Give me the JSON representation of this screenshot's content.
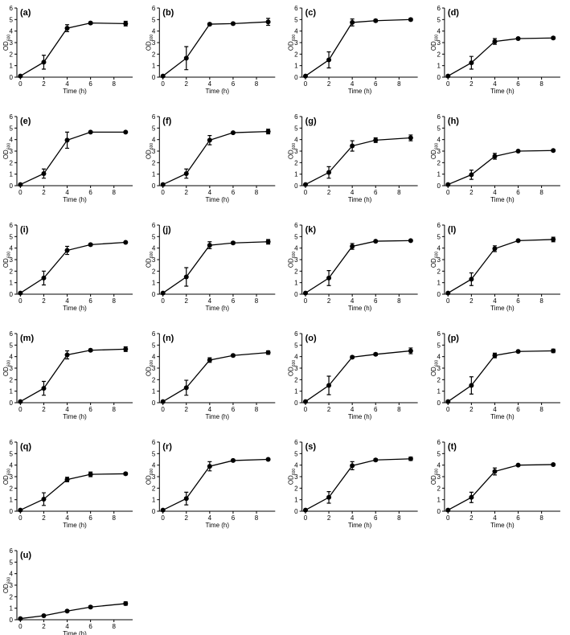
{
  "chart_data": [
    {
      "type": "line",
      "title": "(a)",
      "xlabel": "Time (h)",
      "ylabel": "OD",
      "ylabel_subscript": "600",
      "x": [
        0,
        2,
        4,
        6,
        9
      ],
      "xlim": [
        -0.3,
        9.6
      ],
      "ylim": [
        0,
        6
      ],
      "xticks": [
        0,
        2,
        4,
        6,
        8
      ],
      "yticks": [
        0,
        1,
        2,
        3,
        4,
        5,
        6
      ],
      "series": [
        {
          "color": "#000000",
          "values": [
            0.1,
            1.3,
            4.25,
            4.7,
            4.65
          ],
          "errors": [
            0.05,
            0.6,
            0.3,
            0.1,
            0.2
          ]
        }
      ]
    },
    {
      "type": "line",
      "title": "(b)",
      "xlabel": "Time (h)",
      "ylabel": "OD",
      "ylabel_subscript": "600",
      "x": [
        0,
        2,
        4,
        6,
        9
      ],
      "xlim": [
        -0.3,
        9.6
      ],
      "ylim": [
        0,
        6
      ],
      "xticks": [
        0,
        2,
        4,
        6,
        8
      ],
      "yticks": [
        0,
        1,
        2,
        3,
        4,
        5,
        6
      ],
      "series": [
        {
          "color": "#000000",
          "values": [
            0.1,
            1.65,
            4.6,
            4.65,
            4.8
          ],
          "errors": [
            0.05,
            1.0,
            0.1,
            0.1,
            0.3
          ]
        }
      ]
    },
    {
      "type": "line",
      "title": "(c)",
      "xlabel": "Time (h)",
      "ylabel": "OD",
      "ylabel_subscript": "600",
      "x": [
        0,
        2,
        4,
        6,
        9
      ],
      "xlim": [
        -0.3,
        9.6
      ],
      "ylim": [
        0,
        6
      ],
      "xticks": [
        0,
        2,
        4,
        6,
        8
      ],
      "yticks": [
        0,
        1,
        2,
        3,
        4,
        5,
        6
      ],
      "series": [
        {
          "color": "#000000",
          "values": [
            0.1,
            1.5,
            4.75,
            4.9,
            5.0
          ],
          "errors": [
            0.05,
            0.7,
            0.3,
            0.1,
            0.1
          ]
        }
      ]
    },
    {
      "type": "line",
      "title": "(d)",
      "xlabel": "Time (h)",
      "ylabel": "OD",
      "ylabel_subscript": "600",
      "x": [
        0,
        2,
        4,
        6,
        9
      ],
      "xlim": [
        -0.3,
        9.6
      ],
      "ylim": [
        0,
        6
      ],
      "xticks": [
        0,
        2,
        4,
        6,
        8
      ],
      "yticks": [
        0,
        1,
        2,
        3,
        4,
        5,
        6
      ],
      "series": [
        {
          "color": "#000000",
          "values": [
            0.1,
            1.25,
            3.1,
            3.35,
            3.4
          ],
          "errors": [
            0.05,
            0.55,
            0.25,
            0.1,
            0.1
          ]
        }
      ]
    },
    {
      "type": "line",
      "title": "(e)",
      "xlabel": "Time (h)",
      "ylabel": "OD",
      "ylabel_subscript": "600",
      "x": [
        0,
        2,
        4,
        6,
        9
      ],
      "xlim": [
        -0.3,
        9.6
      ],
      "ylim": [
        0,
        6
      ],
      "xticks": [
        0,
        2,
        4,
        6,
        8
      ],
      "yticks": [
        0,
        1,
        2,
        3,
        4,
        5,
        6
      ],
      "series": [
        {
          "color": "#000000",
          "values": [
            0.1,
            1.05,
            3.95,
            4.65,
            4.65
          ],
          "errors": [
            0.05,
            0.4,
            0.7,
            0.05,
            0.05
          ]
        }
      ]
    },
    {
      "type": "line",
      "title": "(f)",
      "xlabel": "Time (h)",
      "ylabel": "OD",
      "ylabel_subscript": "600",
      "x": [
        0,
        2,
        4,
        6,
        9
      ],
      "xlim": [
        -0.3,
        9.6
      ],
      "ylim": [
        0,
        6
      ],
      "xticks": [
        0,
        2,
        4,
        6,
        8
      ],
      "yticks": [
        0,
        1,
        2,
        3,
        4,
        5,
        6
      ],
      "series": [
        {
          "color": "#000000",
          "values": [
            0.1,
            1.05,
            3.95,
            4.6,
            4.7
          ],
          "errors": [
            0.05,
            0.4,
            0.4,
            0.05,
            0.2
          ]
        }
      ]
    },
    {
      "type": "line",
      "title": "(g)",
      "xlabel": "Time (h)",
      "ylabel": "OD",
      "ylabel_subscript": "600",
      "x": [
        0,
        2,
        4,
        6,
        9
      ],
      "xlim": [
        -0.3,
        9.6
      ],
      "ylim": [
        0,
        6
      ],
      "xticks": [
        0,
        2,
        4,
        6,
        8
      ],
      "yticks": [
        0,
        1,
        2,
        3,
        4,
        5,
        6
      ],
      "series": [
        {
          "color": "#000000",
          "values": [
            0.1,
            1.15,
            3.45,
            3.95,
            4.15
          ],
          "errors": [
            0.05,
            0.5,
            0.45,
            0.2,
            0.25
          ]
        }
      ]
    },
    {
      "type": "line",
      "title": "(h)",
      "xlabel": "Time (h)",
      "ylabel": "OD",
      "ylabel_subscript": "600",
      "x": [
        0,
        2,
        4,
        6,
        9
      ],
      "xlim": [
        -0.3,
        9.6
      ],
      "ylim": [
        0,
        6
      ],
      "xticks": [
        0,
        2,
        4,
        6,
        8
      ],
      "yticks": [
        0,
        1,
        2,
        3,
        4,
        5,
        6
      ],
      "series": [
        {
          "color": "#000000",
          "values": [
            0.1,
            0.95,
            2.55,
            3.0,
            3.05
          ],
          "errors": [
            0.05,
            0.4,
            0.25,
            0.05,
            0.05
          ]
        }
      ]
    },
    {
      "type": "line",
      "title": "(i)",
      "xlabel": "Time (h)",
      "ylabel": "OD",
      "ylabel_subscript": "600",
      "x": [
        0,
        2,
        4,
        6,
        9
      ],
      "xlim": [
        -0.3,
        9.6
      ],
      "ylim": [
        0,
        6
      ],
      "xticks": [
        0,
        2,
        4,
        6,
        8
      ],
      "yticks": [
        0,
        1,
        2,
        3,
        4,
        5,
        6
      ],
      "series": [
        {
          "color": "#000000",
          "values": [
            0.1,
            1.4,
            3.8,
            4.3,
            4.5
          ],
          "errors": [
            0.05,
            0.6,
            0.35,
            0.1,
            0.05
          ]
        }
      ]
    },
    {
      "type": "line",
      "title": "(j)",
      "xlabel": "Time (h)",
      "ylabel": "OD",
      "ylabel_subscript": "600",
      "x": [
        0,
        2,
        4,
        6,
        9
      ],
      "xlim": [
        -0.3,
        9.6
      ],
      "ylim": [
        0,
        6
      ],
      "xticks": [
        0,
        2,
        4,
        6,
        8
      ],
      "yticks": [
        0,
        1,
        2,
        3,
        4,
        5,
        6
      ],
      "series": [
        {
          "color": "#000000",
          "values": [
            0.1,
            1.5,
            4.25,
            4.45,
            4.55
          ],
          "errors": [
            0.05,
            0.8,
            0.3,
            0.1,
            0.2
          ]
        }
      ]
    },
    {
      "type": "line",
      "title": "(k)",
      "xlabel": "Time (h)",
      "ylabel": "OD",
      "ylabel_subscript": "600",
      "x": [
        0,
        2,
        4,
        6,
        9
      ],
      "xlim": [
        -0.3,
        9.6
      ],
      "ylim": [
        0,
        6
      ],
      "xticks": [
        0,
        2,
        4,
        6,
        8
      ],
      "yticks": [
        0,
        1,
        2,
        3,
        4,
        5,
        6
      ],
      "series": [
        {
          "color": "#000000",
          "values": [
            0.1,
            1.4,
            4.15,
            4.6,
            4.65
          ],
          "errors": [
            0.05,
            0.65,
            0.25,
            0.05,
            0.05
          ]
        }
      ]
    },
    {
      "type": "line",
      "title": "(l)",
      "xlabel": "Time (h)",
      "ylabel": "OD",
      "ylabel_subscript": "600",
      "x": [
        0,
        2,
        4,
        6,
        9
      ],
      "xlim": [
        -0.3,
        9.6
      ],
      "ylim": [
        0,
        6
      ],
      "xticks": [
        0,
        2,
        4,
        6,
        8
      ],
      "yticks": [
        0,
        1,
        2,
        3,
        4,
        5,
        6
      ],
      "series": [
        {
          "color": "#000000",
          "values": [
            0.1,
            1.3,
            3.95,
            4.65,
            4.75
          ],
          "errors": [
            0.05,
            0.55,
            0.25,
            0.05,
            0.2
          ]
        }
      ]
    },
    {
      "type": "line",
      "title": "(m)",
      "xlabel": "Time (h)",
      "ylabel": "OD",
      "ylabel_subscript": "600",
      "x": [
        0,
        2,
        4,
        6,
        9
      ],
      "xlim": [
        -0.3,
        9.6
      ],
      "ylim": [
        0,
        6
      ],
      "xticks": [
        0,
        2,
        4,
        6,
        8
      ],
      "yticks": [
        0,
        1,
        2,
        3,
        4,
        5,
        6
      ],
      "series": [
        {
          "color": "#000000",
          "values": [
            0.1,
            1.25,
            4.15,
            4.55,
            4.65
          ],
          "errors": [
            0.05,
            0.6,
            0.35,
            0.1,
            0.2
          ]
        }
      ]
    },
    {
      "type": "line",
      "title": "(n)",
      "xlabel": "Time (h)",
      "ylabel": "OD",
      "ylabel_subscript": "600",
      "x": [
        0,
        2,
        4,
        6,
        9
      ],
      "xlim": [
        -0.3,
        9.6
      ],
      "ylim": [
        0,
        6
      ],
      "xticks": [
        0,
        2,
        4,
        6,
        8
      ],
      "yticks": [
        0,
        1,
        2,
        3,
        4,
        5,
        6
      ],
      "series": [
        {
          "color": "#000000",
          "values": [
            0.1,
            1.3,
            3.7,
            4.1,
            4.35
          ],
          "errors": [
            0.05,
            0.65,
            0.2,
            0.1,
            0.15
          ]
        }
      ]
    },
    {
      "type": "line",
      "title": "(o)",
      "xlabel": "Time (h)",
      "ylabel": "OD",
      "ylabel_subscript": "600",
      "x": [
        0,
        2,
        4,
        6,
        9
      ],
      "xlim": [
        -0.3,
        9.6
      ],
      "ylim": [
        0,
        6
      ],
      "xticks": [
        0,
        2,
        4,
        6,
        8
      ],
      "yticks": [
        0,
        1,
        2,
        3,
        4,
        5,
        6
      ],
      "series": [
        {
          "color": "#000000",
          "values": [
            0.1,
            1.5,
            3.95,
            4.2,
            4.5
          ],
          "errors": [
            0.05,
            0.8,
            0.1,
            0.1,
            0.25
          ]
        }
      ]
    },
    {
      "type": "line",
      "title": "(p)",
      "xlabel": "Time (h)",
      "ylabel": "OD",
      "ylabel_subscript": "600",
      "x": [
        0,
        2,
        4,
        6,
        9
      ],
      "xlim": [
        -0.3,
        9.6
      ],
      "ylim": [
        0,
        6
      ],
      "xticks": [
        0,
        2,
        4,
        6,
        8
      ],
      "yticks": [
        0,
        1,
        2,
        3,
        4,
        5,
        6
      ],
      "series": [
        {
          "color": "#000000",
          "values": [
            0.1,
            1.5,
            4.1,
            4.45,
            4.5
          ],
          "errors": [
            0.05,
            0.75,
            0.2,
            0.05,
            0.15
          ]
        }
      ]
    },
    {
      "type": "line",
      "title": "(q)",
      "xlabel": "Time (h)",
      "ylabel": "OD",
      "ylabel_subscript": "600",
      "x": [
        0,
        2,
        4,
        6,
        9
      ],
      "xlim": [
        -0.3,
        9.6
      ],
      "ylim": [
        0,
        6
      ],
      "xticks": [
        0,
        2,
        4,
        6,
        8
      ],
      "yticks": [
        0,
        1,
        2,
        3,
        4,
        5,
        6
      ],
      "series": [
        {
          "color": "#000000",
          "values": [
            0.1,
            1.05,
            2.75,
            3.2,
            3.25
          ],
          "errors": [
            0.05,
            0.55,
            0.2,
            0.2,
            0.1
          ]
        }
      ]
    },
    {
      "type": "line",
      "title": "(r)",
      "xlabel": "Time (h)",
      "ylabel": "OD",
      "ylabel_subscript": "600",
      "x": [
        0,
        2,
        4,
        6,
        9
      ],
      "xlim": [
        -0.3,
        9.6
      ],
      "ylim": [
        0,
        6
      ],
      "xticks": [
        0,
        2,
        4,
        6,
        8
      ],
      "yticks": [
        0,
        1,
        2,
        3,
        4,
        5,
        6
      ],
      "series": [
        {
          "color": "#000000",
          "values": [
            0.1,
            1.1,
            3.9,
            4.4,
            4.5
          ],
          "errors": [
            0.05,
            0.55,
            0.4,
            0.1,
            0.05
          ]
        }
      ]
    },
    {
      "type": "line",
      "title": "(s)",
      "xlabel": "Time (h)",
      "ylabel": "OD",
      "ylabel_subscript": "600",
      "x": [
        0,
        2,
        4,
        6,
        9
      ],
      "xlim": [
        -0.3,
        9.6
      ],
      "ylim": [
        0,
        6
      ],
      "xticks": [
        0,
        2,
        4,
        6,
        8
      ],
      "yticks": [
        0,
        1,
        2,
        3,
        4,
        5,
        6
      ],
      "series": [
        {
          "color": "#000000",
          "values": [
            0.1,
            1.2,
            3.95,
            4.45,
            4.55
          ],
          "errors": [
            0.05,
            0.5,
            0.35,
            0.1,
            0.15
          ]
        }
      ]
    },
    {
      "type": "line",
      "title": "(t)",
      "xlabel": "Time (h)",
      "ylabel": "OD",
      "ylabel_subscript": "600",
      "x": [
        0,
        2,
        4,
        6,
        9
      ],
      "xlim": [
        -0.3,
        9.6
      ],
      "ylim": [
        0,
        6
      ],
      "xticks": [
        0,
        2,
        4,
        6,
        8
      ],
      "yticks": [
        0,
        1,
        2,
        3,
        4,
        5,
        6
      ],
      "series": [
        {
          "color": "#000000",
          "values": [
            0.1,
            1.2,
            3.45,
            4.0,
            4.05
          ],
          "errors": [
            0.05,
            0.45,
            0.3,
            0.05,
            0.05
          ]
        }
      ]
    },
    {
      "type": "line",
      "title": "(u)",
      "xlabel": "Time (h)",
      "ylabel": "OD",
      "ylabel_subscript": "600",
      "x": [
        0,
        2,
        4,
        6,
        9
      ],
      "xlim": [
        -0.3,
        9.6
      ],
      "ylim": [
        0,
        6
      ],
      "xticks": [
        0,
        2,
        4,
        6,
        8
      ],
      "yticks": [
        0,
        1,
        2,
        3,
        4,
        5,
        6
      ],
      "series": [
        {
          "color": "#000000",
          "values": [
            0.1,
            0.35,
            0.75,
            1.1,
            1.4
          ],
          "errors": [
            0.05,
            0.05,
            0.05,
            0.1,
            0.15
          ]
        }
      ]
    }
  ]
}
